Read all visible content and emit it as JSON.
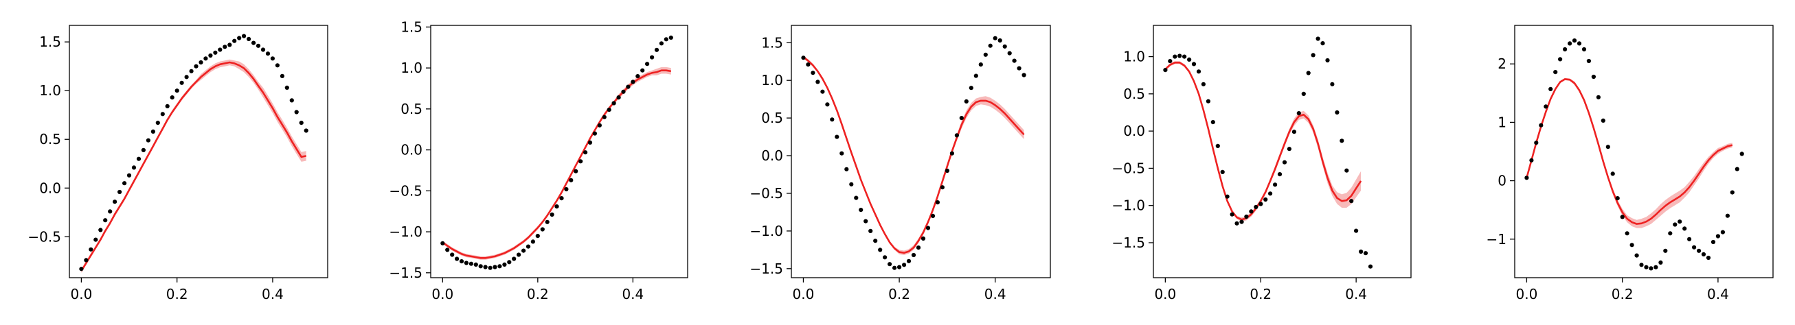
{
  "colors": {
    "dots": "#000000",
    "mean_line": "#ee2222",
    "band": "#f4a3a3"
  },
  "chart_data": [
    {
      "type": "line",
      "xlim": [
        -0.025,
        0.515
      ],
      "ylim": [
        -0.92,
        1.67
      ],
      "xticks": [
        0.0,
        0.2,
        0.4
      ],
      "xtick_labels": [
        "0.0",
        "0.2",
        "0.4"
      ],
      "yticks": [
        -0.5,
        0.0,
        0.5,
        1.0,
        1.5
      ],
      "ytick_labels": [
        "−0.5",
        "0.0",
        "0.5",
        "1.0",
        "1.5"
      ],
      "grid": false,
      "legend": "none",
      "dots": {
        "x0": 0.0,
        "dx": 0.01,
        "y": [
          -0.83,
          -0.74,
          -0.63,
          -0.53,
          -0.43,
          -0.33,
          -0.24,
          -0.14,
          -0.04,
          0.05,
          0.13,
          0.21,
          0.3,
          0.39,
          0.49,
          0.58,
          0.67,
          0.76,
          0.84,
          0.93,
          1.0,
          1.08,
          1.14,
          1.2,
          1.25,
          1.29,
          1.33,
          1.36,
          1.39,
          1.42,
          1.45,
          1.47,
          1.51,
          1.54,
          1.56,
          1.53,
          1.49,
          1.46,
          1.42,
          1.38,
          1.33,
          1.26,
          1.15,
          1.03,
          0.9,
          0.78,
          0.67,
          0.59
        ]
      },
      "mean": {
        "x0": 0.0,
        "dx": 0.01,
        "y": [
          -0.85,
          -0.77,
          -0.69,
          -0.61,
          -0.53,
          -0.44,
          -0.36,
          -0.27,
          -0.19,
          -0.11,
          -0.02,
          0.07,
          0.16,
          0.25,
          0.34,
          0.43,
          0.52,
          0.61,
          0.7,
          0.78,
          0.85,
          0.92,
          0.98,
          1.04,
          1.09,
          1.14,
          1.18,
          1.22,
          1.25,
          1.27,
          1.28,
          1.29,
          1.28,
          1.26,
          1.23,
          1.18,
          1.12,
          1.05,
          0.98,
          0.9,
          0.82,
          0.73,
          0.65,
          0.57,
          0.48,
          0.4,
          0.32,
          0.33
        ]
      },
      "band_halfwidth": {
        "x0": 0.0,
        "dx": 0.01,
        "y": [
          0.02,
          0.02,
          0.02,
          0.02,
          0.02,
          0.02,
          0.02,
          0.02,
          0.02,
          0.02,
          0.02,
          0.02,
          0.02,
          0.02,
          0.02,
          0.02,
          0.02,
          0.02,
          0.02,
          0.02,
          0.02,
          0.02,
          0.02,
          0.02,
          0.02,
          0.03,
          0.03,
          0.03,
          0.03,
          0.03,
          0.03,
          0.03,
          0.03,
          0.04,
          0.04,
          0.04,
          0.04,
          0.04,
          0.05,
          0.05,
          0.05,
          0.05,
          0.05,
          0.05,
          0.05,
          0.05,
          0.05,
          0.05
        ]
      }
    },
    {
      "type": "line",
      "xlim": [
        -0.025,
        0.515
      ],
      "ylim": [
        -1.56,
        1.52
      ],
      "xticks": [
        0.0,
        0.2,
        0.4
      ],
      "xtick_labels": [
        "0.0",
        "0.2",
        "0.4"
      ],
      "yticks": [
        -1.5,
        -1.0,
        -0.5,
        0.0,
        0.5,
        1.0,
        1.5
      ],
      "ytick_labels": [
        "−1.5",
        "−1.0",
        "−0.5",
        "0.0",
        "0.5",
        "1.0",
        "1.5"
      ],
      "grid": false,
      "legend": "none",
      "dots": {
        "x0": 0.0,
        "dx": 0.01,
        "y": [
          -1.14,
          -1.22,
          -1.28,
          -1.33,
          -1.36,
          -1.38,
          -1.39,
          -1.4,
          -1.42,
          -1.43,
          -1.44,
          -1.43,
          -1.42,
          -1.4,
          -1.37,
          -1.33,
          -1.28,
          -1.23,
          -1.18,
          -1.12,
          -1.05,
          -0.97,
          -0.88,
          -0.79,
          -0.69,
          -0.59,
          -0.48,
          -0.37,
          -0.26,
          -0.14,
          -0.03,
          0.09,
          0.2,
          0.3,
          0.4,
          0.49,
          0.57,
          0.64,
          0.71,
          0.77,
          0.83,
          0.9,
          0.97,
          1.05,
          1.13,
          1.22,
          1.3,
          1.35,
          1.37
        ]
      },
      "mean": {
        "x0": 0.0,
        "dx": 0.01,
        "y": [
          -1.13,
          -1.17,
          -1.21,
          -1.24,
          -1.27,
          -1.29,
          -1.3,
          -1.31,
          -1.32,
          -1.32,
          -1.31,
          -1.3,
          -1.28,
          -1.26,
          -1.23,
          -1.2,
          -1.16,
          -1.12,
          -1.07,
          -1.01,
          -0.95,
          -0.88,
          -0.8,
          -0.71,
          -0.62,
          -0.52,
          -0.41,
          -0.3,
          -0.19,
          -0.08,
          0.03,
          0.14,
          0.24,
          0.34,
          0.43,
          0.51,
          0.58,
          0.65,
          0.71,
          0.77,
          0.82,
          0.86,
          0.89,
          0.92,
          0.94,
          0.95,
          0.97,
          0.97,
          0.96
        ]
      },
      "band_halfwidth": {
        "x0": 0.0,
        "dx": 0.01,
        "y": [
          0.02,
          0.02,
          0.02,
          0.02,
          0.02,
          0.02,
          0.02,
          0.02,
          0.02,
          0.02,
          0.02,
          0.02,
          0.02,
          0.02,
          0.02,
          0.02,
          0.02,
          0.02,
          0.02,
          0.02,
          0.02,
          0.02,
          0.02,
          0.02,
          0.02,
          0.02,
          0.02,
          0.02,
          0.02,
          0.02,
          0.02,
          0.02,
          0.02,
          0.02,
          0.02,
          0.02,
          0.02,
          0.03,
          0.03,
          0.03,
          0.03,
          0.03,
          0.03,
          0.03,
          0.03,
          0.04,
          0.04,
          0.04,
          0.04
        ]
      }
    },
    {
      "type": "line",
      "xlim": [
        -0.025,
        0.515
      ],
      "ylim": [
        -1.62,
        1.73
      ],
      "xticks": [
        0.0,
        0.2,
        0.4
      ],
      "xtick_labels": [
        "0.0",
        "0.2",
        "0.4"
      ],
      "yticks": [
        -1.5,
        -1.0,
        -0.5,
        0.0,
        0.5,
        1.0,
        1.5
      ],
      "ytick_labels": [
        "−1.5",
        "−1.0",
        "−0.5",
        "0.0",
        "0.5",
        "1.0",
        "1.5"
      ],
      "grid": false,
      "legend": "none",
      "dots": {
        "x0": 0.0,
        "dx": 0.01,
        "y": [
          1.3,
          1.21,
          1.1,
          0.98,
          0.85,
          0.68,
          0.48,
          0.25,
          0.03,
          -0.18,
          -0.38,
          -0.56,
          -0.72,
          -0.87,
          -1.0,
          -1.13,
          -1.25,
          -1.35,
          -1.44,
          -1.49,
          -1.48,
          -1.45,
          -1.4,
          -1.32,
          -1.22,
          -1.1,
          -0.96,
          -0.8,
          -0.62,
          -0.42,
          -0.2,
          0.03,
          0.27,
          0.5,
          0.72,
          0.9,
          1.06,
          1.21,
          1.34,
          1.46,
          1.56,
          1.53,
          1.45,
          1.36,
          1.26,
          1.16,
          1.07
        ]
      },
      "mean": {
        "x0": 0.0,
        "dx": 0.01,
        "y": [
          1.31,
          1.26,
          1.2,
          1.12,
          1.02,
          0.9,
          0.76,
          0.6,
          0.42,
          0.23,
          0.04,
          -0.14,
          -0.32,
          -0.48,
          -0.64,
          -0.78,
          -0.92,
          -1.04,
          -1.15,
          -1.23,
          -1.28,
          -1.29,
          -1.27,
          -1.22,
          -1.13,
          -1.02,
          -0.88,
          -0.72,
          -0.54,
          -0.34,
          -0.14,
          0.06,
          0.24,
          0.41,
          0.55,
          0.65,
          0.71,
          0.73,
          0.73,
          0.71,
          0.67,
          0.62,
          0.56,
          0.49,
          0.42,
          0.35,
          0.28
        ]
      },
      "band_halfwidth": {
        "x0": 0.0,
        "dx": 0.01,
        "y": [
          0.02,
          0.02,
          0.02,
          0.02,
          0.02,
          0.02,
          0.02,
          0.02,
          0.02,
          0.02,
          0.02,
          0.02,
          0.02,
          0.02,
          0.02,
          0.02,
          0.02,
          0.02,
          0.02,
          0.02,
          0.03,
          0.03,
          0.03,
          0.03,
          0.03,
          0.03,
          0.03,
          0.03,
          0.03,
          0.04,
          0.04,
          0.04,
          0.04,
          0.05,
          0.05,
          0.05,
          0.05,
          0.05,
          0.06,
          0.06,
          0.06,
          0.06,
          0.06,
          0.06,
          0.06,
          0.06,
          0.06
        ]
      }
    },
    {
      "type": "line",
      "xlim": [
        -0.025,
        0.515
      ],
      "ylim": [
        -1.97,
        1.42
      ],
      "xticks": [
        0.0,
        0.2,
        0.4
      ],
      "xtick_labels": [
        "0.0",
        "0.2",
        "0.4"
      ],
      "yticks": [
        -1.5,
        -1.0,
        -0.5,
        0.0,
        0.5,
        1.0
      ],
      "ytick_labels": [
        "−1.5",
        "−1.0",
        "−0.5",
        "0.0",
        "0.5",
        "1.0"
      ],
      "grid": false,
      "legend": "none",
      "dots": {
        "x0": 0.0,
        "dx": 0.01,
        "y": [
          0.82,
          0.94,
          1.0,
          1.01,
          1.0,
          0.96,
          0.9,
          0.8,
          0.63,
          0.4,
          0.12,
          -0.2,
          -0.55,
          -0.88,
          -1.12,
          -1.24,
          -1.22,
          -1.15,
          -1.08,
          -1.02,
          -0.98,
          -0.92,
          -0.84,
          -0.72,
          -0.58,
          -0.42,
          -0.24,
          -0.01,
          0.24,
          0.5,
          0.78,
          1.02,
          1.24,
          1.18,
          0.95,
          0.63,
          0.25,
          -0.13,
          -0.53,
          -0.94,
          -1.34,
          -1.62,
          -1.64,
          -1.82
        ]
      },
      "mean": {
        "x0": 0.0,
        "dx": 0.01,
        "y": [
          0.83,
          0.89,
          0.92,
          0.92,
          0.88,
          0.8,
          0.67,
          0.5,
          0.28,
          0.03,
          -0.24,
          -0.5,
          -0.74,
          -0.94,
          -1.08,
          -1.16,
          -1.19,
          -1.17,
          -1.12,
          -1.04,
          -0.94,
          -0.82,
          -0.67,
          -0.51,
          -0.34,
          -0.17,
          -0.01,
          0.12,
          0.2,
          0.22,
          0.16,
          0.03,
          -0.17,
          -0.41,
          -0.63,
          -0.8,
          -0.9,
          -0.94,
          -0.93,
          -0.87,
          -0.77,
          -0.67
        ]
      },
      "band_halfwidth": {
        "x0": 0.0,
        "dx": 0.01,
        "y": [
          0.02,
          0.02,
          0.02,
          0.02,
          0.02,
          0.02,
          0.02,
          0.02,
          0.02,
          0.02,
          0.02,
          0.02,
          0.02,
          0.02,
          0.02,
          0.02,
          0.03,
          0.03,
          0.03,
          0.03,
          0.03,
          0.03,
          0.03,
          0.04,
          0.04,
          0.04,
          0.04,
          0.05,
          0.05,
          0.05,
          0.05,
          0.05,
          0.06,
          0.06,
          0.07,
          0.07,
          0.08,
          0.09,
          0.1,
          0.11,
          0.12,
          0.13
        ]
      }
    },
    {
      "type": "line",
      "xlim": [
        -0.025,
        0.515
      ],
      "ylim": [
        -1.66,
        2.66
      ],
      "xticks": [
        0.0,
        0.2,
        0.4
      ],
      "xtick_labels": [
        "0.0",
        "0.2",
        "0.4"
      ],
      "yticks": [
        -1,
        0,
        1,
        2
      ],
      "ytick_labels": [
        "−1",
        "0",
        "1",
        "2"
      ],
      "grid": false,
      "legend": "none",
      "dots": {
        "x0": 0.0,
        "dx": 0.01,
        "y": [
          0.05,
          0.35,
          0.65,
          0.95,
          1.27,
          1.57,
          1.86,
          2.08,
          2.25,
          2.35,
          2.4,
          2.35,
          2.25,
          2.05,
          1.78,
          1.43,
          1.03,
          0.58,
          0.12,
          -0.3,
          -0.62,
          -0.9,
          -1.1,
          -1.28,
          -1.44,
          -1.48,
          -1.5,
          -1.48,
          -1.4,
          -1.2,
          -0.9,
          -0.75,
          -0.7,
          -0.82,
          -1.0,
          -1.14,
          -1.2,
          -1.26,
          -1.32,
          -1.05,
          -0.95,
          -0.88,
          -0.6,
          -0.2,
          0.2,
          0.46
        ]
      },
      "mean": {
        "x0": 0.0,
        "dx": 0.01,
        "y": [
          0.05,
          0.35,
          0.65,
          0.93,
          1.18,
          1.4,
          1.57,
          1.69,
          1.74,
          1.73,
          1.67,
          1.55,
          1.38,
          1.16,
          0.9,
          0.62,
          0.33,
          0.06,
          -0.18,
          -0.38,
          -0.54,
          -0.65,
          -0.71,
          -0.74,
          -0.73,
          -0.7,
          -0.65,
          -0.58,
          -0.5,
          -0.43,
          -0.37,
          -0.32,
          -0.27,
          -0.2,
          -0.11,
          0.0,
          0.12,
          0.24,
          0.35,
          0.44,
          0.51,
          0.55,
          0.59,
          0.61
        ]
      },
      "band_halfwidth": {
        "x0": 0.0,
        "dx": 0.01,
        "y": [
          0.02,
          0.02,
          0.02,
          0.02,
          0.02,
          0.02,
          0.02,
          0.02,
          0.02,
          0.02,
          0.03,
          0.03,
          0.03,
          0.03,
          0.03,
          0.04,
          0.04,
          0.04,
          0.05,
          0.05,
          0.06,
          0.06,
          0.07,
          0.07,
          0.08,
          0.08,
          0.09,
          0.09,
          0.1,
          0.1,
          0.1,
          0.1,
          0.1,
          0.09,
          0.09,
          0.08,
          0.08,
          0.07,
          0.06,
          0.05,
          0.05,
          0.04,
          0.04,
          0.04
        ]
      }
    }
  ]
}
